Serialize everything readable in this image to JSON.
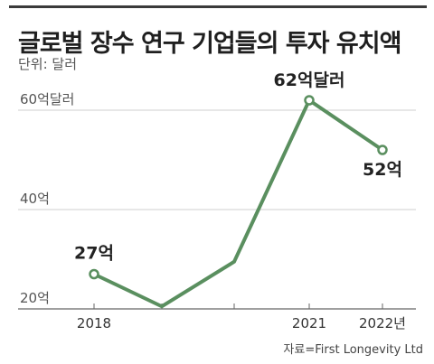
{
  "title": "글로벌 장수 연구 기업들의 투자 유치액",
  "unit_label": "단위: 달러",
  "source": "자료=First Longevity Ltd",
  "chart_data": {
    "type": "line",
    "x": [
      2018,
      2019,
      2020,
      2021,
      2022
    ],
    "x_tick_labels": [
      "2018",
      "",
      "",
      "2021",
      "2022년"
    ],
    "series": [
      {
        "values": [
          27,
          20.5,
          29.5,
          62,
          52
        ],
        "color": "#5a8f5f"
      }
    ],
    "marked_points": [
      0,
      3,
      4
    ],
    "data_labels": [
      "27억",
      "",
      "",
      "62억달러",
      "52억"
    ],
    "y_ticks": [
      {
        "value": 20,
        "label": "20억"
      },
      {
        "value": 40,
        "label": "40억"
      },
      {
        "value": 60,
        "label": "60억달러"
      }
    ],
    "ylim": [
      20,
      64
    ],
    "grid": true
  }
}
